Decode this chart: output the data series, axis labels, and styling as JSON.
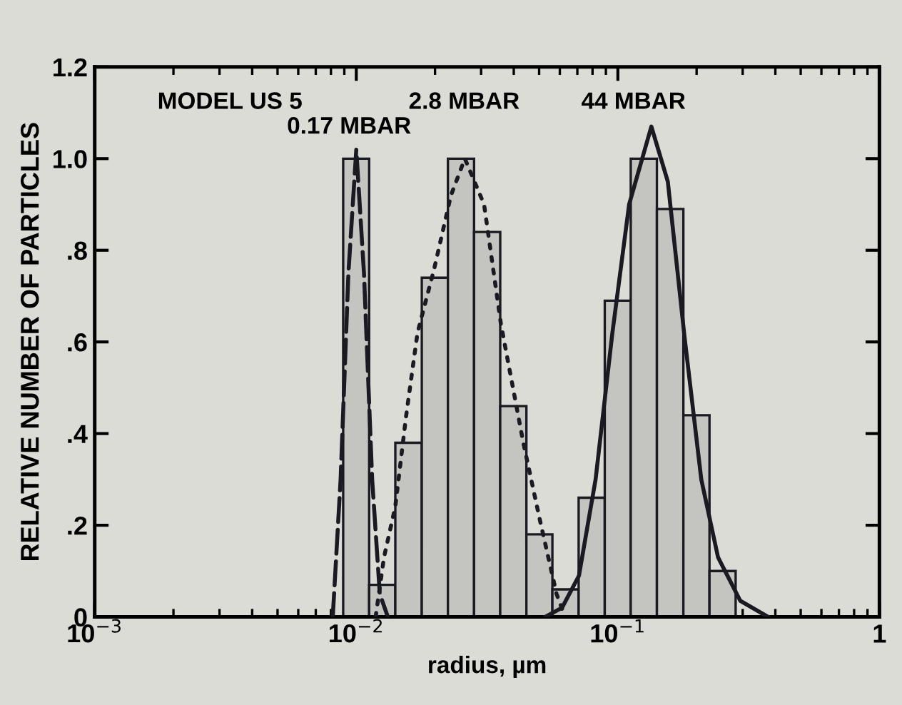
{
  "chart_data": {
    "type": "histogram",
    "xlabel": "radius, µm",
    "ylabel": "RELATIVE NUMBER OF PARTICLES",
    "log": "x",
    "xlim": [
      0.001,
      1
    ],
    "xticks": [
      {
        "value": 0.001,
        "label": "10$^{−3}$"
      },
      {
        "value": 0.01,
        "label": "10$^{−2}$"
      },
      {
        "value": 0.1,
        "label": "10$^{−1}$"
      },
      1
    ],
    "ylim": [
      0,
      1.2
    ],
    "yticks": [
      0,
      {
        "value": 0.2,
        "label": ".2"
      },
      {
        "value": 0.4,
        "label": ".4"
      },
      {
        "value": 0.6,
        "label": ".6"
      },
      {
        "value": 0.8,
        "label": ".8"
      },
      {
        "value": 1.0,
        "label": "1.0"
      },
      {
        "value": 1.2,
        "label": "1.2"
      }
    ],
    "grid": false,
    "legend": false,
    "series": [
      {
        "color": "#c4c4c0",
        "bins": [
          0.00891,
          0.0112,
          0.0141
        ],
        "values": [
          1.0,
          0.07
        ]
      },
      {
        "color": "#c4c4c0",
        "bins": [
          0.0141,
          0.0178,
          0.0224,
          0.0282,
          0.0355,
          0.0447,
          0.0562
        ],
        "values": [
          0.38,
          0.74,
          1.0,
          0.84,
          0.46,
          0.18
        ]
      },
      {
        "color": "#c4c4c0",
        "bins": [
          0.0562,
          0.0708,
          0.0891,
          0.112,
          0.141,
          0.178,
          0.224,
          0.282
        ],
        "values": [
          0.06,
          0.26,
          0.69,
          1.0,
          0.89,
          0.44,
          0.1
        ]
      },
      {
        "type": "line",
        "color": "#1a1a22",
        "line_style": "dashed",
        "x": [
          0.00813,
          0.00871,
          0.00933,
          0.01,
          0.0107,
          0.0115,
          0.0123,
          0.0132
        ],
        "values": [
          0,
          0.3,
          0.75,
          1.02,
          0.75,
          0.3,
          0.05,
          0
        ]
      },
      {
        "type": "line",
        "color": "#1a1a22",
        "line_style": "dotted",
        "x": [
          0.01186,
          0.01276,
          0.01409,
          0.01552,
          0.01714,
          0.01986,
          0.02301,
          0.026,
          0.0308,
          0.0357,
          0.0435,
          0.0504,
          0.0583,
          0.0628
        ],
        "values": [
          0,
          0.13,
          0.24,
          0.44,
          0.62,
          0.76,
          0.92,
          1.0,
          0.9,
          0.64,
          0.38,
          0.21,
          0.05,
          0
        ]
      },
      {
        "type": "line",
        "color": "#1a1a22",
        "line_style": "solid",
        "x": [
          0.0528,
          0.0612,
          0.071,
          0.0822,
          0.0953,
          0.1104,
          0.1343,
          0.1552,
          0.1799,
          0.2084,
          0.2415,
          0.2938,
          0.375
        ],
        "values": [
          0,
          0.02,
          0.09,
          0.3,
          0.62,
          0.9,
          1.07,
          0.95,
          0.61,
          0.3,
          0.13,
          0.035,
          0
        ]
      }
    ],
    "annotations": [
      "MODEL US 5",
      "0.17 MBAR",
      "2.8 MBAR",
      "44 MBAR"
    ]
  }
}
